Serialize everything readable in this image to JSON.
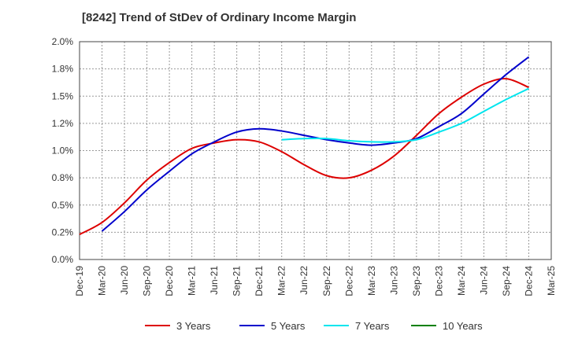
{
  "chart_data": {
    "type": "line",
    "title": "[8242]  Trend of StDev of Ordinary Income Margin",
    "xlabel": "",
    "ylabel": "",
    "x_categories": [
      "Dec-19",
      "Mar-20",
      "Jun-20",
      "Sep-20",
      "Dec-20",
      "Mar-21",
      "Jun-21",
      "Sep-21",
      "Dec-21",
      "Mar-22",
      "Jun-22",
      "Sep-22",
      "Dec-22",
      "Mar-23",
      "Jun-23",
      "Sep-23",
      "Dec-23",
      "Mar-24",
      "Jun-24",
      "Sep-24",
      "Dec-24",
      "Mar-25"
    ],
    "y_ticks": [
      "0.0%",
      "0.2%",
      "0.5%",
      "0.8%",
      "1.0%",
      "1.2%",
      "1.5%",
      "1.8%",
      "2.0%"
    ],
    "ylim": [
      0,
      2.0
    ],
    "grid": true,
    "legend_position": "bottom",
    "series": [
      {
        "name": "3 Years",
        "color": "#dd0000",
        "values": [
          0.23,
          0.34,
          0.52,
          0.73,
          0.89,
          1.02,
          1.07,
          1.1,
          1.08,
          0.99,
          0.87,
          0.77,
          0.75,
          0.82,
          0.95,
          1.14,
          1.34,
          1.49,
          1.61,
          1.66,
          1.58,
          null
        ]
      },
      {
        "name": "5 Years",
        "color": "#0000cc",
        "values": [
          null,
          0.26,
          0.44,
          0.64,
          0.81,
          0.97,
          1.08,
          1.17,
          1.2,
          1.18,
          1.14,
          1.1,
          1.07,
          1.05,
          1.07,
          1.11,
          1.22,
          1.34,
          1.52,
          1.7,
          1.86,
          null
        ]
      },
      {
        "name": "7 Years",
        "color": "#00e5ee",
        "values": [
          null,
          null,
          null,
          null,
          null,
          null,
          null,
          null,
          null,
          1.1,
          1.11,
          1.11,
          1.09,
          1.08,
          1.08,
          1.1,
          1.17,
          1.25,
          1.36,
          1.47,
          1.57,
          null
        ]
      },
      {
        "name": "10 Years",
        "color": "#008000",
        "values": [
          null,
          null,
          null,
          null,
          null,
          null,
          null,
          null,
          null,
          null,
          null,
          null,
          null,
          null,
          null,
          null,
          null,
          null,
          null,
          null,
          null,
          null
        ]
      }
    ]
  }
}
